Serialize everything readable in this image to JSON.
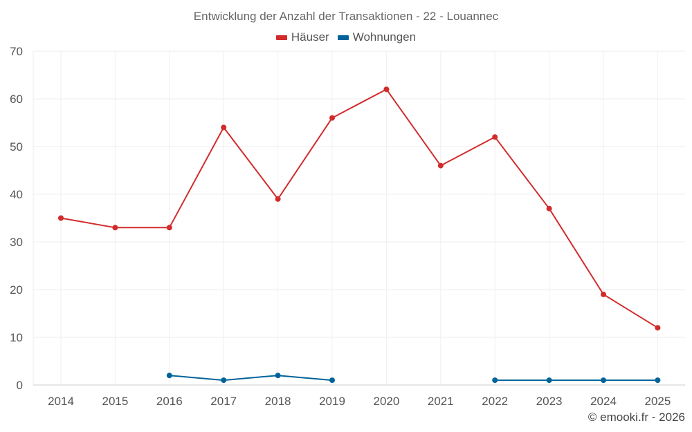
{
  "chart_data": {
    "type": "line",
    "title": "Entwicklung der Anzahl der Transaktionen - 22 - Louannec",
    "categories": [
      "2014",
      "2015",
      "2016",
      "2017",
      "2018",
      "2019",
      "2020",
      "2021",
      "2022",
      "2023",
      "2024",
      "2025"
    ],
    "ylim": [
      0,
      70
    ],
    "yticks": [
      0,
      10,
      20,
      30,
      40,
      50,
      60,
      70
    ],
    "grid": true,
    "legend_position": "top-center",
    "series": [
      {
        "name": "Häuser",
        "color": "#d22b2b",
        "values": [
          35,
          33,
          33,
          54,
          39,
          56,
          62,
          46,
          52,
          37,
          19,
          12
        ]
      },
      {
        "name": "Wohnungen",
        "color": "#00639a",
        "values": [
          null,
          null,
          2,
          1,
          2,
          1,
          null,
          null,
          1,
          1,
          1,
          1
        ]
      }
    ]
  },
  "credit": "© emooki.fr - 2026"
}
